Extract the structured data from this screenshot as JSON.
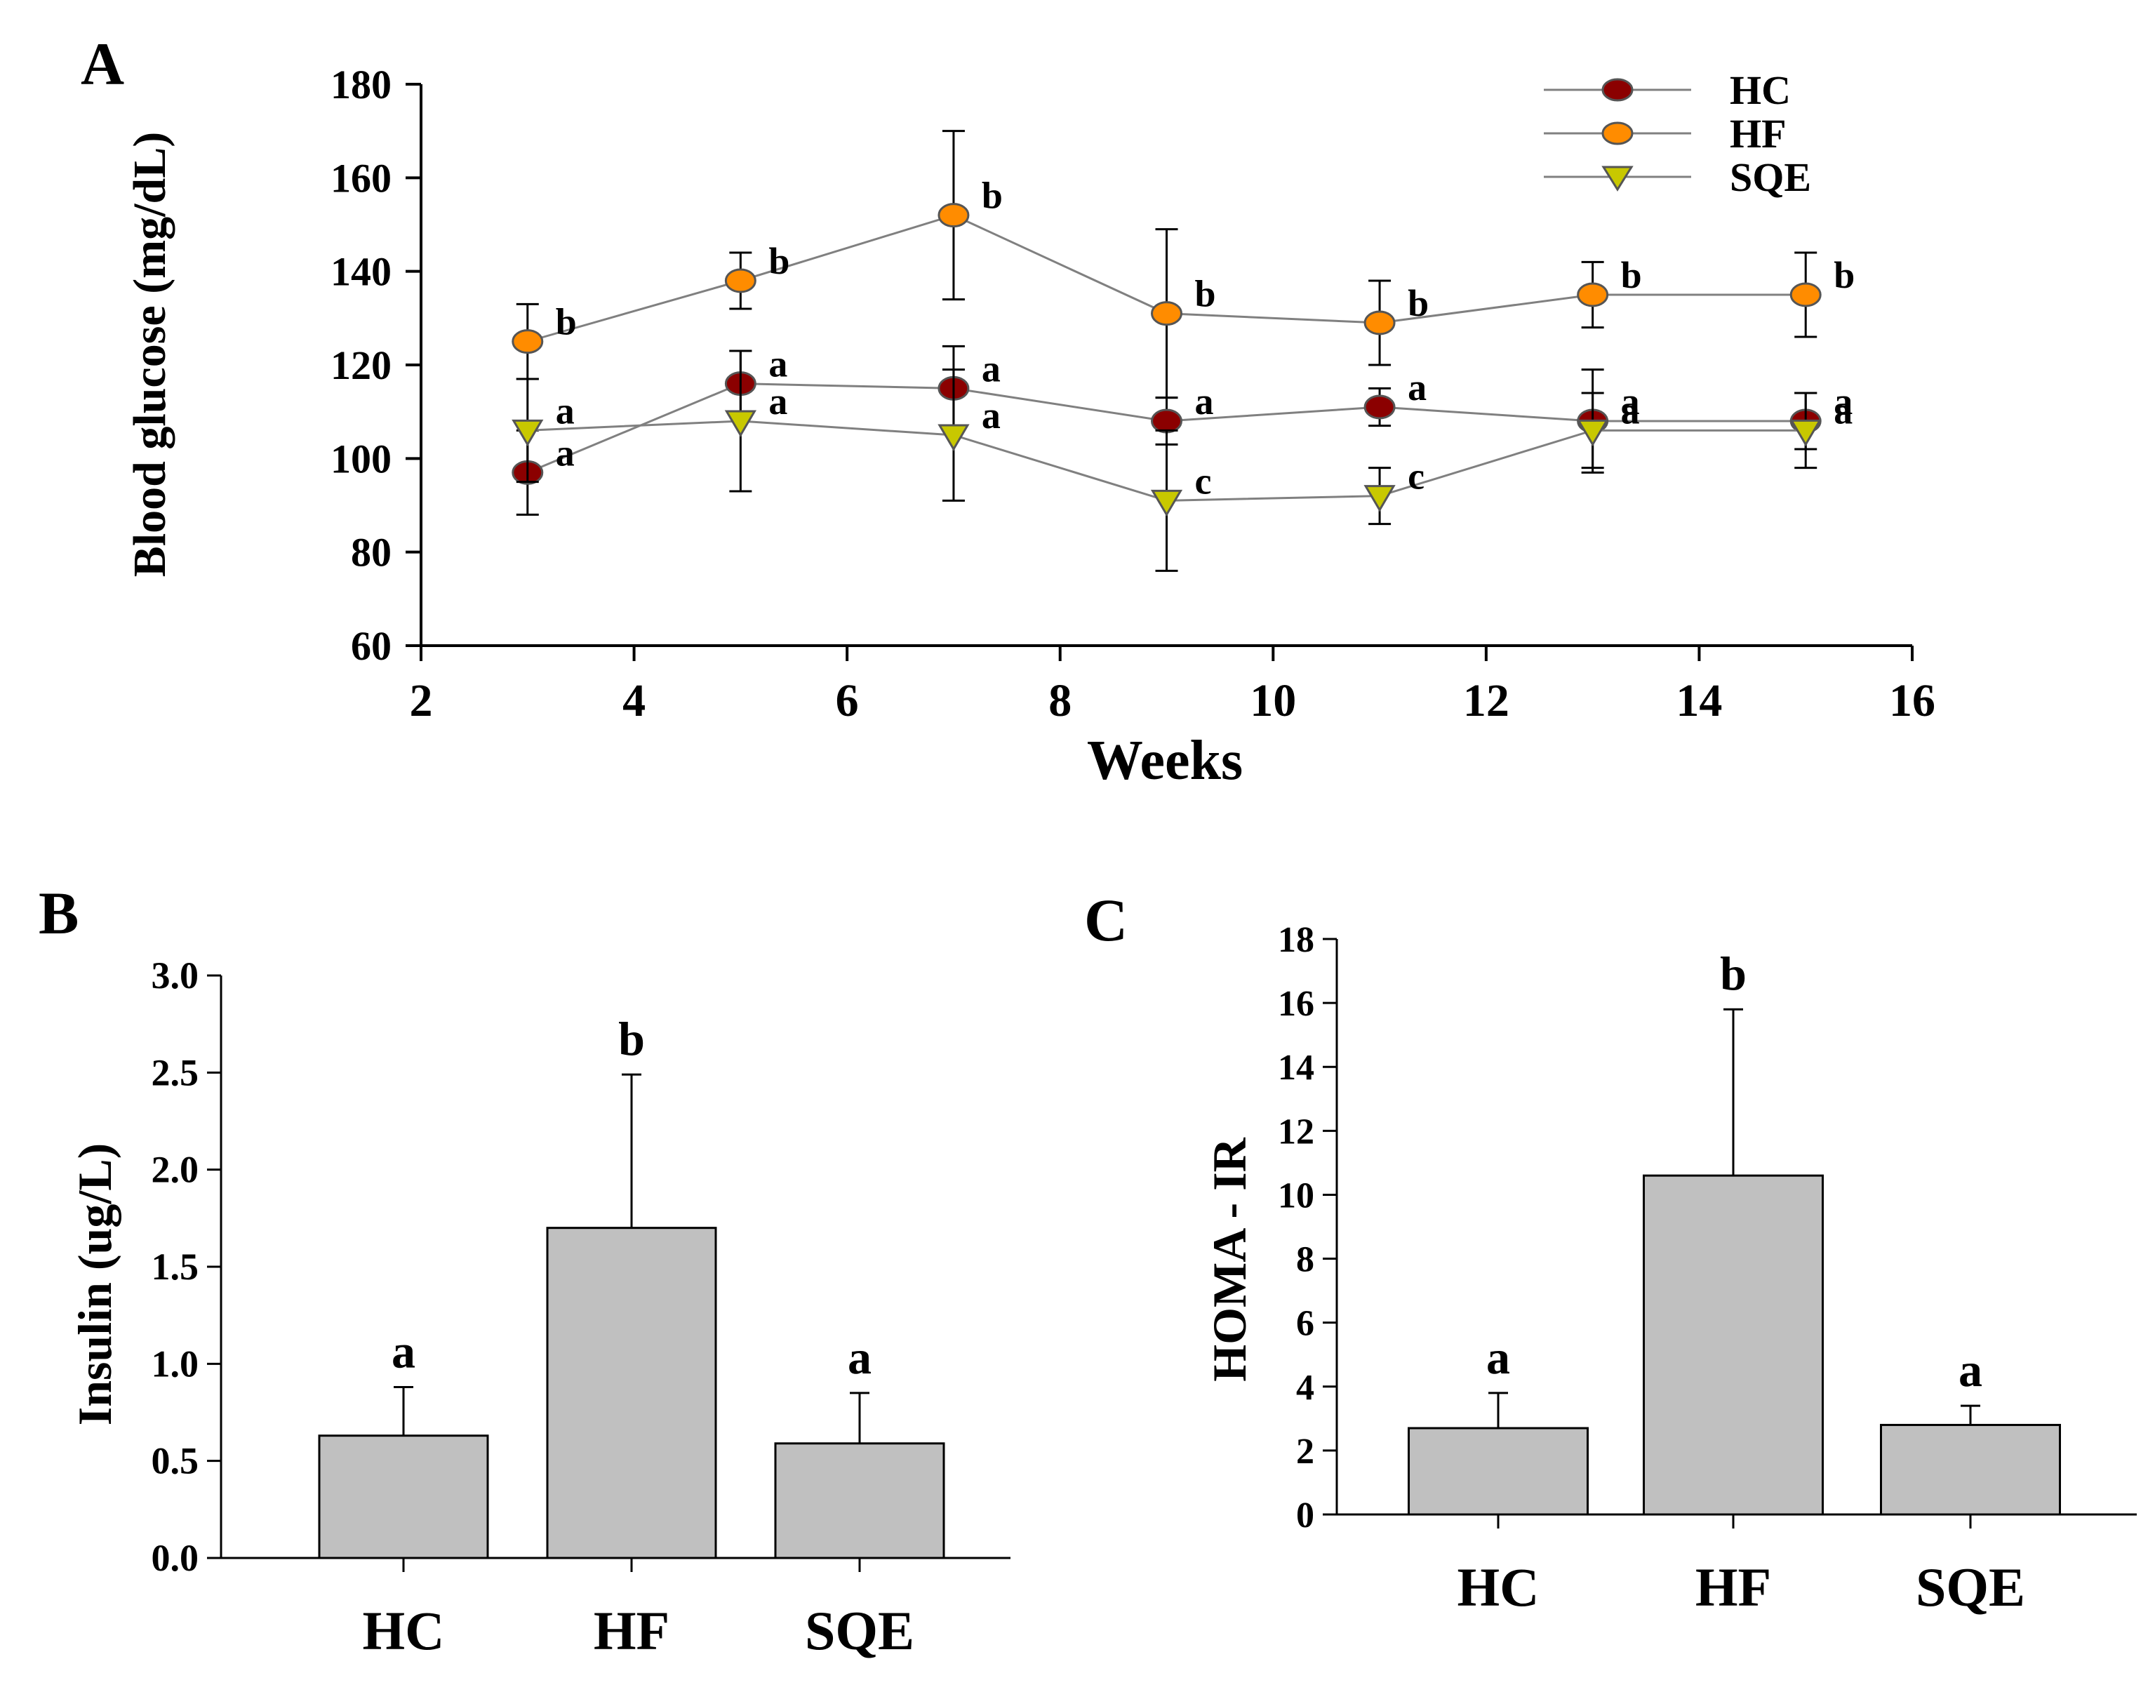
{
  "chart_data": [
    {
      "panel": "A",
      "type": "line",
      "xlabel": "Weeks",
      "ylabel": "Blood glucose (mg/dL)",
      "xlim": [
        2,
        16
      ],
      "ylim": [
        60,
        180
      ],
      "xticks": [
        2,
        4,
        6,
        8,
        10,
        12,
        14,
        16
      ],
      "yticks": [
        60,
        80,
        100,
        120,
        140,
        160,
        180
      ],
      "x": [
        3,
        5,
        7,
        9,
        11,
        13,
        15
      ],
      "series": [
        {
          "name": "HC",
          "color": "#8b0000",
          "marker": "circle",
          "values": [
            97,
            116,
            115,
            108,
            111,
            108,
            108
          ],
          "err": [
            9,
            7,
            9,
            5,
            4,
            11,
            6
          ],
          "letters": [
            "a",
            "a",
            "a",
            "a",
            "a",
            "a",
            "a"
          ]
        },
        {
          "name": "HF",
          "color": "#ff8c00",
          "marker": "circle",
          "values": [
            125,
            138,
            152,
            131,
            129,
            135,
            135
          ],
          "err": [
            8,
            6,
            18,
            18,
            9,
            7,
            9
          ],
          "letters": [
            "b",
            "b",
            "b",
            "b",
            "b",
            "b",
            "b"
          ]
        },
        {
          "name": "SQE",
          "color": "#c8c800",
          "marker": "triangle-down",
          "values": [
            106,
            108,
            105,
            91,
            92,
            106,
            106
          ],
          "err": [
            11,
            15,
            14,
            15,
            6,
            8,
            8
          ],
          "letters": [
            "a",
            "a",
            "a",
            "c",
            "c",
            "a",
            "a"
          ]
        }
      ]
    },
    {
      "panel": "B",
      "type": "bar",
      "categories": [
        "HC",
        "HF",
        "SQE"
      ],
      "values": [
        0.63,
        1.7,
        0.59
      ],
      "err": [
        0.25,
        0.79,
        0.26
      ],
      "letters": [
        "a",
        "b",
        "a"
      ],
      "ylabel": "Insulin (ug/L)",
      "ylim": [
        0,
        3.0
      ],
      "yticks": [
        "0.0",
        "0.5",
        "1.0",
        "1.5",
        "2.0",
        "2.5",
        "3.0"
      ],
      "bar_color": "#c0c0c0"
    },
    {
      "panel": "C",
      "type": "bar",
      "categories": [
        "HC",
        "HF",
        "SQE"
      ],
      "values": [
        2.7,
        10.6,
        2.8
      ],
      "err": [
        1.1,
        5.2,
        0.6
      ],
      "letters": [
        "a",
        "b",
        "a"
      ],
      "ylabel": "HOMA - IR",
      "ylim": [
        0,
        18
      ],
      "yticks": [
        "0",
        "2",
        "4",
        "6",
        "8",
        "10",
        "12",
        "14",
        "16",
        "18"
      ],
      "bar_color": "#c0c0c0"
    }
  ]
}
